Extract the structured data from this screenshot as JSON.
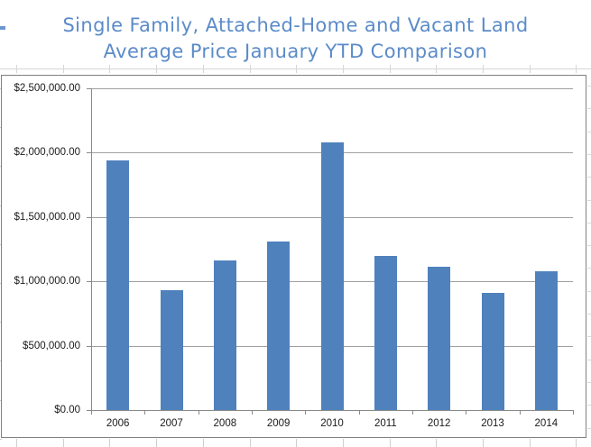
{
  "title": {
    "line1": "Single Family, Attached-Home and Vacant Land",
    "line2": "Average Price January YTD Comparison"
  },
  "chart_data": {
    "type": "bar",
    "title": "Single Family, Attached-Home and Vacant Land Average Price January YTD Comparison",
    "categories": [
      "2006",
      "2007",
      "2008",
      "2009",
      "2010",
      "2011",
      "2012",
      "2013",
      "2014"
    ],
    "values": [
      1940000,
      930000,
      1160000,
      1310000,
      2080000,
      1200000,
      1110000,
      910000,
      1080000
    ],
    "xlabel": "",
    "ylabel": "",
    "ylim": [
      0,
      2500000
    ],
    "ytick_step": 500000,
    "ytick_labels": [
      "$0.00",
      "$500,000.00",
      "$1,000,000.00",
      "$1,500,000.00",
      "$2,000,000.00",
      "$2,500,000.00"
    ],
    "grid": true,
    "legend": "none",
    "bar_color": "#4F81BD"
  },
  "colors": {
    "bar": "#4F81BD",
    "title_text": "#5B8BC9",
    "gridline": "#A0A0A0",
    "axis": "#8A8A8A",
    "chart_border": "#808080",
    "worksheet_line": "#D6D6D6",
    "label_text": "#1A1A1A"
  }
}
